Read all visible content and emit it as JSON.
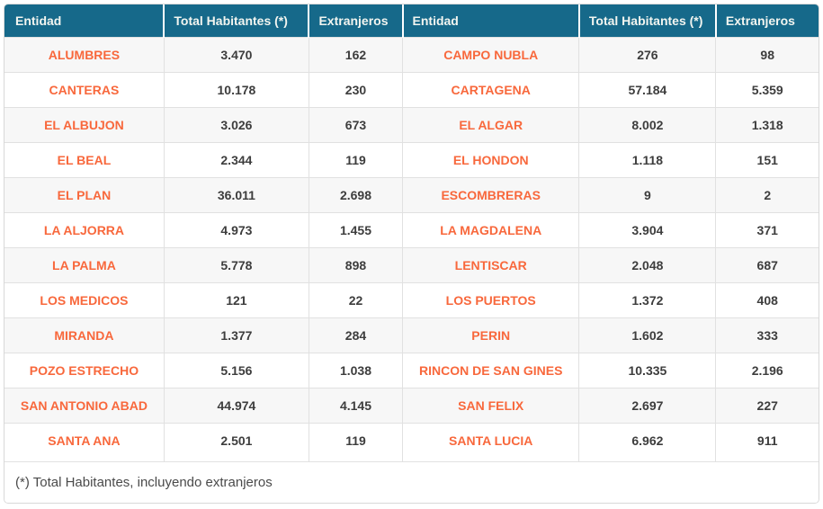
{
  "colors": {
    "header_bg": "#16698a",
    "header_text": "#f2f5f0",
    "entity_text": "#f8683c",
    "number_text": "#3d3d3d",
    "stripe_bg": "#f7f7f7",
    "cell_border": "#e1e1e1",
    "outer_border": "#d8d8d8",
    "footnote_text": "#4a4a4a"
  },
  "panel": {
    "headers": [
      "Entidad",
      "Total Habitantes (*)",
      "Extranjeros",
      "Entidad",
      "Total Habitantes (*)",
      "Extranjeros"
    ],
    "rows": [
      [
        "ALUMBRES",
        "3.470",
        "162",
        "CAMPO NUBLA",
        "276",
        "98"
      ],
      [
        "CANTERAS",
        "10.178",
        "230",
        "CARTAGENA",
        "57.184",
        "5.359"
      ],
      [
        "EL ALBUJON",
        "3.026",
        "673",
        "EL ALGAR",
        "8.002",
        "1.318"
      ],
      [
        "EL BEAL",
        "2.344",
        "119",
        "EL HONDON",
        "1.118",
        "151"
      ],
      [
        "EL PLAN",
        "36.011",
        "2.698",
        "ESCOMBRERAS",
        "9",
        "2"
      ],
      [
        "LA ALJORRA",
        "4.973",
        "1.455",
        "LA MAGDALENA",
        "3.904",
        "371"
      ],
      [
        "LA PALMA",
        "5.778",
        "898",
        "LENTISCAR",
        "2.048",
        "687"
      ],
      [
        "LOS MEDICOS",
        "121",
        "22",
        "LOS PUERTOS",
        "1.372",
        "408"
      ],
      [
        "MIRANDA",
        "1.377",
        "284",
        "PERIN",
        "1.602",
        "333"
      ],
      [
        "POZO ESTRECHO",
        "5.156",
        "1.038",
        "RINCON DE SAN GINES",
        "10.335",
        "2.196"
      ],
      [
        "SAN ANTONIO ABAD",
        "44.974",
        "4.145",
        "SAN FELIX",
        "2.697",
        "227"
      ],
      [
        "SANTA ANA",
        "2.501",
        "119",
        "SANTA LUCIA",
        "6.962",
        "911"
      ]
    ],
    "footnote": "(*) Total Habitantes, incluyendo extranjeros"
  }
}
